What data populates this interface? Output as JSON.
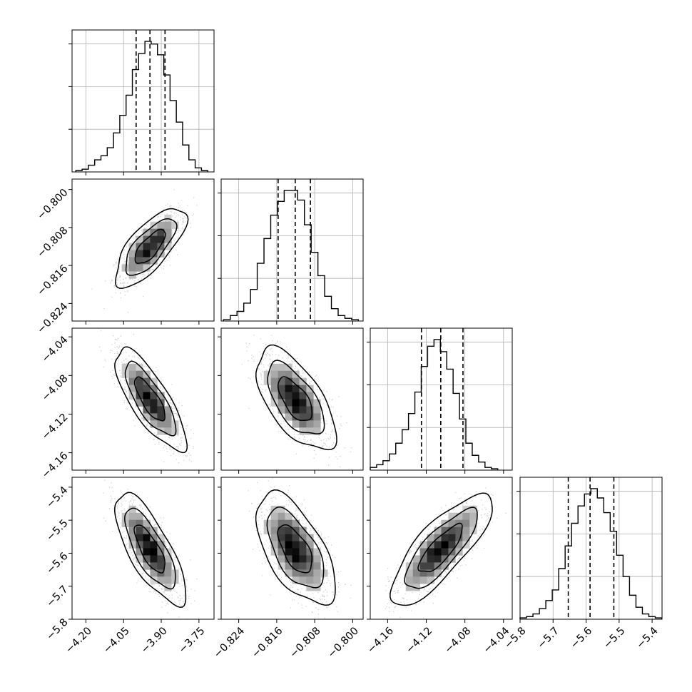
{
  "chart_data": {
    "type": "corner",
    "params": [
      {
        "ticks": [
          -4.2,
          -4.05,
          -3.9,
          -3.75
        ],
        "tick_labels": [
          "−4.20",
          "−4.05",
          "−3.90",
          "−3.75"
        ],
        "range": [
          -4.255,
          -3.69
        ],
        "quantiles": [
          -4.0,
          -3.945,
          -3.885
        ],
        "median": -3.945,
        "hist": {
          "edges_start": -4.24,
          "bin_width": 0.025,
          "counts": [
            1,
            2,
            5,
            9,
            12,
            18,
            29,
            42,
            57,
            76,
            88,
            97,
            95,
            87,
            72,
            53,
            37,
            20,
            9,
            3,
            1
          ]
        }
      },
      {
        "ticks": [
          -0.824,
          -0.816,
          -0.808,
          -0.8
        ],
        "tick_labels": [
          "−0.824",
          "−0.816",
          "−0.808",
          "−0.800"
        ],
        "range": [
          -0.8277,
          -0.7978
        ],
        "quantiles": [
          -0.8157,
          -0.8121,
          -0.8089
        ],
        "median": -0.8121,
        "hist": {
          "edges_start": -0.8272,
          "bin_width": 0.00142,
          "counts": [
            1,
            4,
            7,
            13,
            23,
            42,
            60,
            77,
            87,
            95,
            95,
            88,
            70,
            50,
            33,
            18,
            9,
            4,
            2,
            1
          ]
        }
      },
      {
        "ticks": [
          -4.16,
          -4.12,
          -4.08,
          -4.04
        ],
        "tick_labels": [
          "−4.16",
          "−4.12",
          "−4.08",
          "−4.04"
        ],
        "range": [
          -4.178,
          -4.031
        ],
        "quantiles": [
          -4.125,
          -4.105,
          -4.082
        ],
        "median": -4.105,
        "hist": {
          "edges_start": -4.178,
          "bin_width": 0.0066,
          "counts": [
            2,
            4,
            7,
            12,
            20,
            30,
            42,
            58,
            77,
            92,
            97,
            88,
            75,
            57,
            38,
            20,
            11,
            6,
            2,
            1
          ]
        }
      },
      {
        "ticks": [
          -5.8,
          -5.7,
          -5.6,
          -5.5,
          -5.4
        ],
        "tick_labels": [
          "−5.8",
          "−5.7",
          "−5.6",
          "−5.5",
          "−5.4"
        ],
        "range": [
          -5.8,
          -5.37
        ],
        "quantiles": [
          -5.654,
          -5.588,
          -5.516
        ],
        "median": -5.588,
        "hist": {
          "edges_start": -5.8,
          "bin_width": 0.0195,
          "counts": [
            1,
            2,
            4,
            8,
            14,
            22,
            38,
            55,
            72,
            85,
            94,
            98,
            91,
            80,
            66,
            48,
            32,
            18,
            9,
            4,
            2,
            1
          ]
        }
      }
    ],
    "correlations": [
      {
        "row": 1,
        "col": 0,
        "rho": 0.72
      },
      {
        "row": 2,
        "col": 0,
        "rho": -0.78
      },
      {
        "row": 2,
        "col": 1,
        "rho": -0.62
      },
      {
        "row": 3,
        "col": 0,
        "rho": -0.75
      },
      {
        "row": 3,
        "col": 1,
        "rho": -0.6
      },
      {
        "row": 3,
        "col": 2,
        "rho": 0.8
      }
    ],
    "diagonal_y_ticks": 4,
    "grid": true,
    "contour_levels": 3,
    "colors": {
      "hist": "#000000",
      "points": "#999999",
      "density": "#000000",
      "grid": "#b0b0b0"
    }
  }
}
